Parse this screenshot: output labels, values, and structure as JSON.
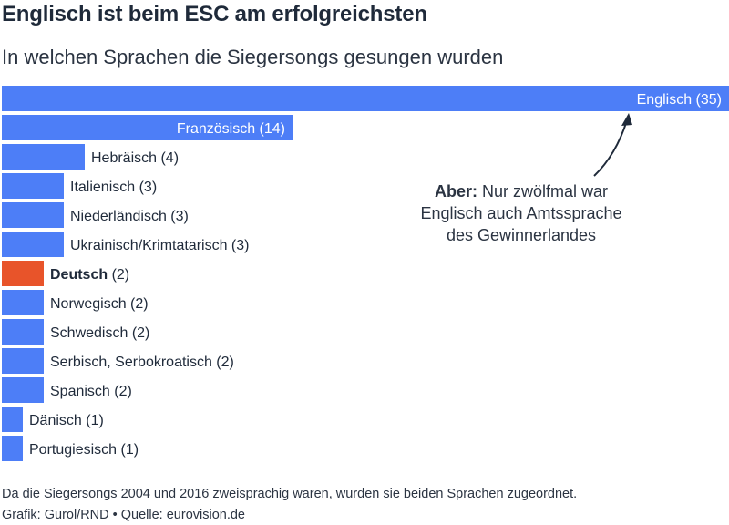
{
  "title": "Englisch ist beim ESC am erfolgreichsten",
  "subtitle": "In welchen Sprachen die Siegersongs gesungen wurden",
  "annotation": {
    "lead": "Aber:",
    "line1": "Nur zwölfmal war",
    "line2": "Englisch auch Amtssprache",
    "line3": "des Gewinnerlandes"
  },
  "footnote": "Da die Siegersongs 2004 und 2016 zweisprachig waren, wurden sie beiden Sprachen zugeordnet.",
  "credit": "Grafik: Gurol/RND • Quelle: eurovision.de",
  "colors": {
    "bar": "#4d7ef7",
    "highlight": "#e8542a",
    "label_dark": "#1f2a3a",
    "label_light": "#ffffff"
  },
  "chart_data": {
    "type": "bar",
    "orientation": "horizontal",
    "categories": [
      "Englisch",
      "Französisch",
      "Hebräisch",
      "Italienisch",
      "Niederländisch",
      "Ukrainisch/Krimtatarisch",
      "Deutsch",
      "Norwegisch",
      "Schwedisch",
      "Serbisch, Serbokroatisch",
      "Spanisch",
      "Dänisch",
      "Portugiesisch"
    ],
    "values": [
      35,
      14,
      4,
      3,
      3,
      3,
      2,
      2,
      2,
      2,
      2,
      1,
      1
    ],
    "highlight": "Deutsch",
    "xlim": [
      0,
      35
    ],
    "grid": false
  }
}
